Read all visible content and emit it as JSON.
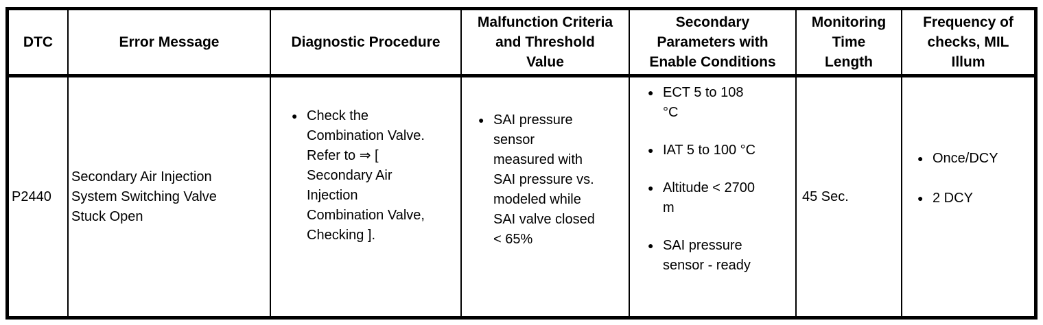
{
  "page": {
    "background_color": "#ffffff",
    "border_color": "#000000",
    "text_color": "#000000"
  },
  "icons": {
    "bullet": "●"
  },
  "table": {
    "headers": [
      "DTC",
      "Error Message",
      "Diagnostic Procedure",
      "Malfunction Criteria\nand Threshold\nValue",
      "Secondary\nParameters with\nEnable Conditions",
      "Monitoring\nTime\nLength",
      "Frequency of\nchecks, MIL\nIllum"
    ],
    "row": {
      "dtc": "P2440",
      "error_message": "Secondary Air Injection\nSystem Switching Valve\nStuck Open",
      "diagnostic_procedure": {
        "items": [
          "Check the\nCombination Valve.\nRefer to ⇒ [\nSecondary Air\nInjection\nCombination Valve,\nChecking ]."
        ]
      },
      "malfunction_criteria_threshold": {
        "items": [
          "SAI pressure\nsensor\nmeasured with\nSAI pressure vs.\nmodeled while\nSAI valve closed\n< 65%"
        ]
      },
      "secondary_parameters_enable_conditions": {
        "items": [
          "ECT 5 to 108\n°C",
          "IAT 5 to 100 °C",
          "Altitude < 2700\nm",
          "SAI pressure\nsensor - ready"
        ]
      },
      "monitoring_time_length": "45 Sec.",
      "frequency_of_checks_mil_illum": {
        "items": [
          "Once/DCY",
          "2 DCY"
        ]
      }
    }
  }
}
